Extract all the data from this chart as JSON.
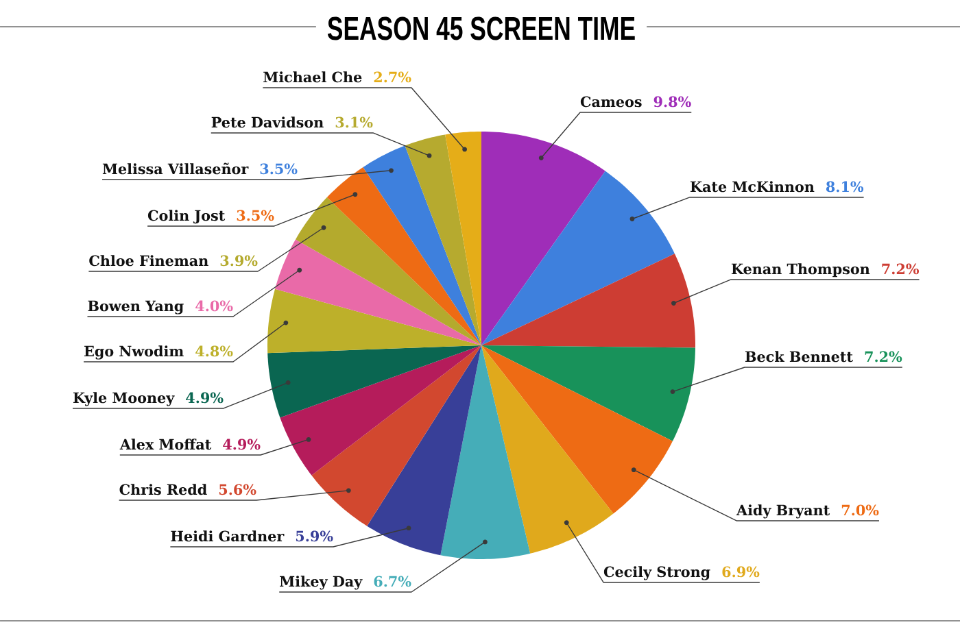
{
  "chart_data": {
    "type": "pie",
    "title": "SEASON 45 SCREEN TIME",
    "categories": [
      "Cameos",
      "Kate McKinnon",
      "Kenan Thompson",
      "Beck Bennett",
      "Aidy Bryant",
      "Cecily Strong",
      "Mikey Day",
      "Heidi Gardner",
      "Chris Redd",
      "Alex Moffat",
      "Kyle Mooney",
      "Ego Nwodim",
      "Bowen Yang",
      "Chloe Fineman",
      "Colin Jost",
      "Melissa Villaseñor",
      "Pete Davidson",
      "Michael Che"
    ],
    "values": [
      9.8,
      8.1,
      7.2,
      7.2,
      7.0,
      6.9,
      6.7,
      5.9,
      5.6,
      4.9,
      4.9,
      4.8,
      4.0,
      3.9,
      3.5,
      3.5,
      3.1,
      2.7
    ],
    "value_labels": [
      "9.8%",
      "8.1%",
      "7.2%",
      "7.2%",
      "7.0%",
      "6.9%",
      "6.7%",
      "5.9%",
      "5.6%",
      "4.9%",
      "4.9%",
      "4.8%",
      "4.0%",
      "3.9%",
      "3.5%",
      "3.5%",
      "3.1%",
      "2.7%"
    ],
    "colors": [
      "#9f2db8",
      "#3e80dd",
      "#cd3d33",
      "#18925a",
      "#ee6b14",
      "#e0a91c",
      "#45adb8",
      "#383f98",
      "#d2482f",
      "#b51c5b",
      "#0a6651",
      "#bdb02a",
      "#e96aa8",
      "#b4aa2d",
      "#ee6b14",
      "#3e80dd",
      "#b6aa2f",
      "#e5ad18"
    ]
  }
}
